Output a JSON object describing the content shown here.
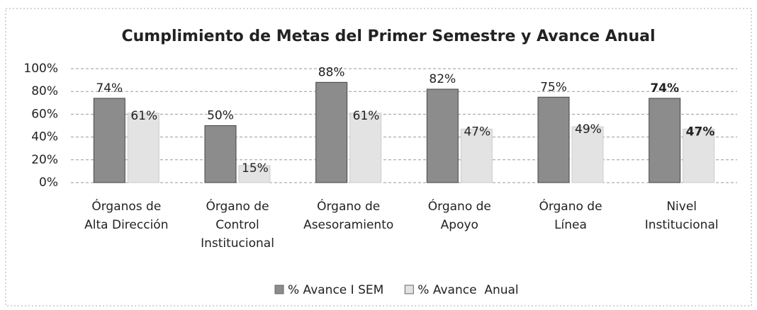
{
  "chart_data": {
    "type": "bar",
    "title": "Cumplimiento de Metas del Primer Semestre y Avance Anual",
    "categories": [
      "Órganos de\nAlta Dirección",
      "Órgano de\nControl\nInstitucional",
      "Órgano de\nAsesoramiento",
      "Órgano de\nApoyo",
      "Órgano de\nLínea",
      "Nivel\nInstitucional"
    ],
    "series": [
      {
        "name": "% Avance I SEM",
        "color": "#8c8c8c",
        "values": [
          74,
          50,
          88,
          82,
          75,
          74
        ],
        "value_labels": [
          "74%",
          "50%",
          "88%",
          "82%",
          "75%",
          "74%"
        ]
      },
      {
        "name": "% Avance  Anual",
        "color": "#e3e3e3",
        "values": [
          61,
          15,
          61,
          47,
          49,
          47
        ],
        "value_labels": [
          "61%",
          "15%",
          "61%",
          "47%",
          "49%",
          "47%"
        ]
      }
    ],
    "ylim": [
      0,
      100
    ],
    "yticks": [
      {
        "value": 0,
        "label": "0%"
      },
      {
        "value": 20,
        "label": "20%"
      },
      {
        "value": 40,
        "label": "40%"
      },
      {
        "value": 60,
        "label": "60%"
      },
      {
        "value": 80,
        "label": "80%"
      },
      {
        "value": 100,
        "label": "100%"
      }
    ],
    "grid": true,
    "legend": "bottom"
  }
}
